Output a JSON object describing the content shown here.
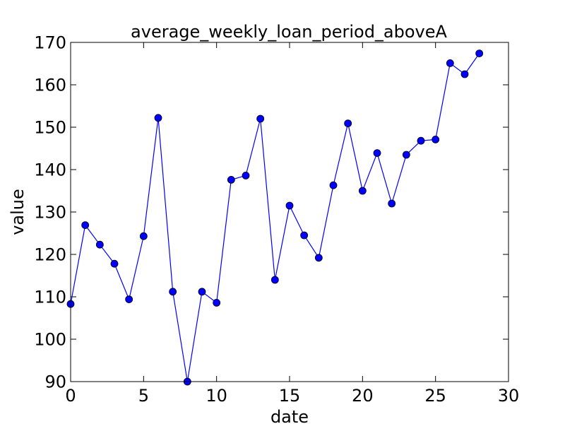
{
  "chart_data": {
    "type": "line",
    "title": "average_weekly_loan_period_aboveA",
    "xlabel": "date",
    "ylabel": "value",
    "xlim": [
      0,
      30
    ],
    "ylim": [
      90,
      170
    ],
    "xticks": [
      0,
      5,
      10,
      15,
      20,
      25,
      30
    ],
    "yticks": [
      90,
      100,
      110,
      120,
      130,
      140,
      150,
      160,
      170
    ],
    "grid": false,
    "line_color": "#0000ff",
    "marker_color": "#0000ff",
    "marker": "circle",
    "series": [
      {
        "x": [
          0,
          1,
          2,
          3,
          4,
          5,
          6,
          7,
          8,
          9,
          10,
          11,
          12,
          13,
          14,
          15,
          16,
          17,
          18,
          19,
          20,
          21,
          22,
          23,
          24,
          25,
          26,
          27,
          28
        ],
        "values": [
          108.3,
          126.9,
          122.3,
          117.8,
          109.4,
          124.3,
          152.2,
          111.2,
          90.0,
          111.2,
          108.6,
          137.6,
          138.6,
          152.0,
          114.0,
          131.5,
          124.5,
          119.2,
          136.3,
          150.9,
          135.0,
          143.9,
          132.0,
          143.5,
          146.8,
          147.1,
          165.1,
          162.5,
          167.4
        ]
      }
    ]
  }
}
